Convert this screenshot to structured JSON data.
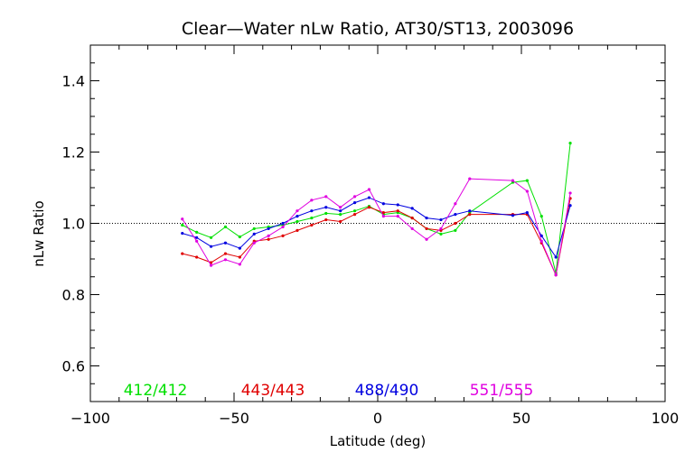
{
  "chart_data": {
    "type": "line",
    "title": "Clear—Water nLw Ratio, AT30/ST13, 2003096",
    "xlabel": "Latitude (deg)",
    "ylabel": "nLw Ratio",
    "xlim": [
      -100,
      100
    ],
    "ylim": [
      0.5,
      1.5
    ],
    "xticks": [
      -100,
      -50,
      0,
      50,
      100
    ],
    "xtick_labels": [
      "−100",
      "−50",
      "0",
      "50",
      "100"
    ],
    "yticks": [
      0.6,
      0.8,
      1.0,
      1.2,
      1.4
    ],
    "ytick_labels": [
      "0.6",
      "0.8",
      "1.0",
      "1.2",
      "1.4"
    ],
    "reference_line": 1.0,
    "grid": false,
    "legend_position": "bottom",
    "series": [
      {
        "name": "412/412",
        "color": "#00e000",
        "points": [
          [
            -68,
            0.995
          ],
          [
            -63,
            0.975
          ],
          [
            -58,
            0.96
          ],
          [
            -53,
            0.99
          ],
          [
            -48,
            0.962
          ],
          [
            -43,
            0.985
          ],
          [
            -38,
            0.99
          ],
          [
            -33,
            0.995
          ],
          [
            -28,
            1.005
          ],
          [
            -23,
            1.015
          ],
          [
            -18,
            1.028
          ],
          [
            -13,
            1.025
          ],
          [
            -8,
            1.035
          ],
          [
            -3,
            1.048
          ],
          [
            2,
            1.025
          ],
          [
            7,
            1.03
          ],
          [
            12,
            1.015
          ],
          [
            17,
            0.985
          ],
          [
            22,
            0.97
          ],
          [
            27,
            0.98
          ],
          [
            32,
            1.03
          ],
          [
            47,
            1.115
          ],
          [
            52,
            1.12
          ],
          [
            57,
            1.02
          ],
          [
            62,
            0.86
          ],
          [
            67,
            1.225
          ]
        ]
      },
      {
        "name": "443/443",
        "color": "#e00000",
        "points": [
          [
            -68,
            0.915
          ],
          [
            -63,
            0.905
          ],
          [
            -58,
            0.89
          ],
          [
            -53,
            0.915
          ],
          [
            -48,
            0.905
          ],
          [
            -43,
            0.95
          ],
          [
            -38,
            0.955
          ],
          [
            -33,
            0.965
          ],
          [
            -28,
            0.98
          ],
          [
            -23,
            0.995
          ],
          [
            -18,
            1.01
          ],
          [
            -13,
            1.005
          ],
          [
            -8,
            1.025
          ],
          [
            -3,
            1.045
          ],
          [
            2,
            1.03
          ],
          [
            7,
            1.035
          ],
          [
            12,
            1.015
          ],
          [
            17,
            0.985
          ],
          [
            22,
            0.98
          ],
          [
            27,
            1.0
          ],
          [
            32,
            1.025
          ],
          [
            47,
            1.025
          ],
          [
            52,
            1.025
          ],
          [
            57,
            0.945
          ],
          [
            62,
            0.855
          ],
          [
            67,
            1.07
          ]
        ]
      },
      {
        "name": "488/490",
        "color": "#0000e0",
        "points": [
          [
            -68,
            0.972
          ],
          [
            -63,
            0.96
          ],
          [
            -58,
            0.935
          ],
          [
            -53,
            0.945
          ],
          [
            -48,
            0.93
          ],
          [
            -43,
            0.97
          ],
          [
            -38,
            0.985
          ],
          [
            -33,
            1.0
          ],
          [
            -28,
            1.02
          ],
          [
            -23,
            1.035
          ],
          [
            -18,
            1.045
          ],
          [
            -13,
            1.035
          ],
          [
            -8,
            1.058
          ],
          [
            -3,
            1.072
          ],
          [
            2,
            1.055
          ],
          [
            7,
            1.052
          ],
          [
            12,
            1.042
          ],
          [
            17,
            1.015
          ],
          [
            22,
            1.01
          ],
          [
            27,
            1.025
          ],
          [
            32,
            1.035
          ],
          [
            47,
            1.022
          ],
          [
            52,
            1.03
          ],
          [
            57,
            0.965
          ],
          [
            62,
            0.905
          ],
          [
            67,
            1.05
          ]
        ]
      },
      {
        "name": "551/555",
        "color": "#e000e0",
        "points": [
          [
            -68,
            1.012
          ],
          [
            -63,
            0.95
          ],
          [
            -58,
            0.882
          ],
          [
            -53,
            0.898
          ],
          [
            -48,
            0.885
          ],
          [
            -43,
            0.945
          ],
          [
            -38,
            0.965
          ],
          [
            -33,
            0.99
          ],
          [
            -28,
            1.035
          ],
          [
            -23,
            1.065
          ],
          [
            -18,
            1.075
          ],
          [
            -13,
            1.045
          ],
          [
            -8,
            1.075
          ],
          [
            -3,
            1.095
          ],
          [
            2,
            1.02
          ],
          [
            7,
            1.02
          ],
          [
            12,
            0.985
          ],
          [
            17,
            0.955
          ],
          [
            22,
            0.985
          ],
          [
            27,
            1.055
          ],
          [
            32,
            1.125
          ],
          [
            47,
            1.12
          ],
          [
            52,
            1.09
          ],
          [
            57,
            0.95
          ],
          [
            62,
            0.855
          ],
          [
            67,
            1.085
          ]
        ]
      }
    ]
  }
}
